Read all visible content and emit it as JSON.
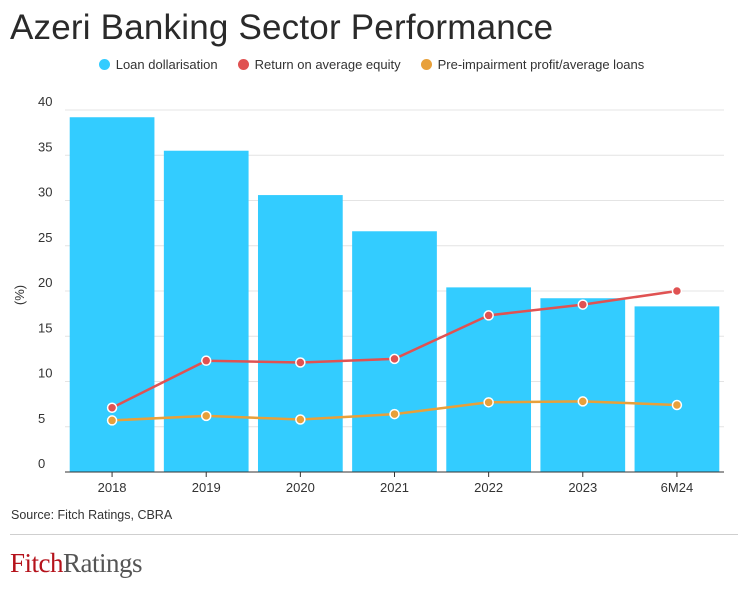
{
  "title": "Azeri Banking Sector Performance",
  "source": "Source: Fitch Ratings, CBRA",
  "logo": {
    "part1": "Fitch",
    "part2": "Ratings"
  },
  "colors": {
    "bar": "#33ccff",
    "roe": "#e05252",
    "ppp": "#e8a03a",
    "grid": "#e4e4e4",
    "axis": "#333333"
  },
  "chart_data": {
    "type": "bar",
    "categories": [
      "2018",
      "2019",
      "2020",
      "2021",
      "2022",
      "2023",
      "6M24"
    ],
    "ylabel": "(%)",
    "ylim": [
      0,
      40
    ],
    "yticks": [
      0,
      5,
      10,
      15,
      20,
      25,
      30,
      35,
      40
    ],
    "grid": true,
    "legend_position": "top",
    "series": [
      {
        "name": "Loan dollarisation",
        "kind": "bar",
        "values": [
          39.2,
          35.5,
          30.6,
          26.6,
          20.4,
          19.2,
          18.3
        ]
      },
      {
        "name": "Return on average equity",
        "kind": "line",
        "values": [
          7.1,
          12.3,
          12.1,
          12.5,
          17.3,
          18.5,
          20.0
        ]
      },
      {
        "name": "Pre-impairment profit/average loans",
        "kind": "line",
        "values": [
          5.7,
          6.2,
          5.8,
          6.4,
          7.7,
          7.8,
          7.4
        ]
      }
    ]
  }
}
